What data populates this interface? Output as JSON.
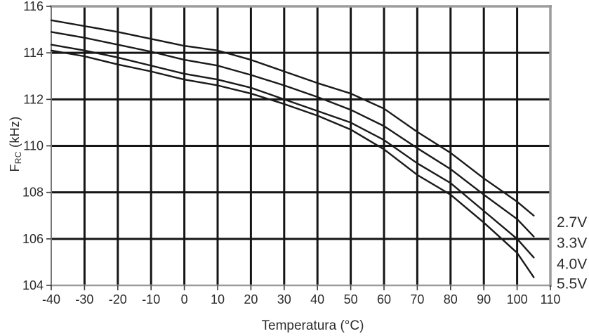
{
  "chart_data": {
    "type": "line",
    "title": "",
    "xlabel": "Temperatura (°C)",
    "ylabel": {
      "base": "F",
      "sub": "RC",
      "unit": " (kHz)"
    },
    "xlim": [
      -40,
      110
    ],
    "ylim": [
      104,
      116
    ],
    "x_ticks": [
      -40,
      -30,
      -20,
      -10,
      0,
      10,
      20,
      30,
      40,
      50,
      60,
      70,
      80,
      90,
      100,
      110
    ],
    "y_ticks": [
      104,
      106,
      108,
      110,
      112,
      114,
      116
    ],
    "grid": "on",
    "legend_position": "right-outside",
    "x": [
      -40,
      -30,
      -20,
      -10,
      0,
      10,
      20,
      30,
      40,
      50,
      60,
      70,
      80,
      90,
      100,
      105
    ],
    "series": [
      {
        "label": "2.7V",
        "values": [
          115.4,
          115.15,
          114.9,
          114.6,
          114.3,
          114.1,
          113.7,
          113.2,
          112.7,
          112.25,
          111.6,
          110.6,
          109.7,
          108.6,
          107.6,
          107.0
        ]
      },
      {
        "label": "3.3V",
        "values": [
          114.9,
          114.65,
          114.35,
          114.05,
          113.7,
          113.45,
          113.05,
          112.6,
          112.1,
          111.55,
          110.85,
          109.9,
          109.0,
          107.9,
          106.85,
          106.1
        ]
      },
      {
        "label": "4.0V",
        "values": [
          114.35,
          114.1,
          113.8,
          113.45,
          113.1,
          112.85,
          112.5,
          112.0,
          111.5,
          111.0,
          110.25,
          109.25,
          108.4,
          107.2,
          106.0,
          105.2
        ]
      },
      {
        "label": "5.5V",
        "values": [
          114.1,
          113.85,
          113.5,
          113.2,
          112.85,
          112.6,
          112.25,
          111.8,
          111.3,
          110.7,
          109.85,
          108.75,
          107.9,
          106.7,
          105.4,
          104.35
        ]
      }
    ],
    "colors": {
      "curve": "#1a1a1a",
      "grid": "#151515",
      "frame": "#9b9b9b",
      "axis": "#787878",
      "tick": "#3a3a3a",
      "text": "#2b2b2b",
      "background": "#ffffff"
    }
  }
}
